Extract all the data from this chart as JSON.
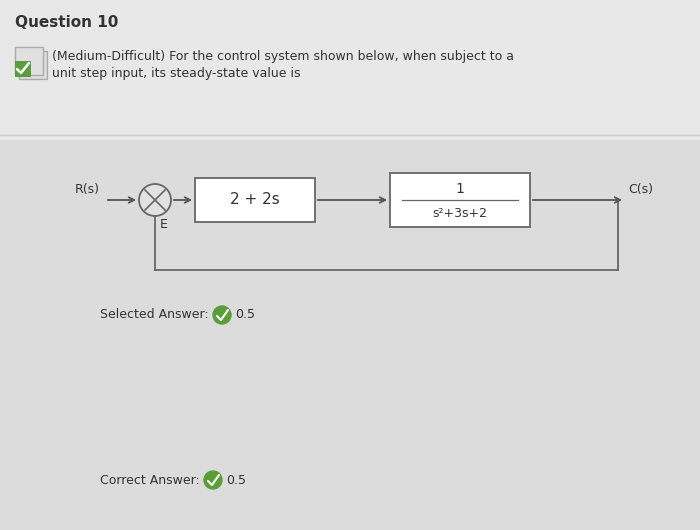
{
  "title": "Question 10",
  "subtitle_line1": "(Medium-Difficult) For the control system shown below, when subject to a",
  "subtitle_line2": "unit step input, its steady-state value is",
  "bg_color_top": "#e8e8e8",
  "bg_color_bottom": "#e8e8e8",
  "bg_color": "#e2e2e2",
  "box1_label": "2 + 2s",
  "box2_numerator": "1",
  "box2_denominator": "s²+3s+2",
  "r_label": "R(s)",
  "e_label": "E",
  "c_label": "C(s)",
  "selected_answer_label": "Selected Answer:",
  "selected_answer_value": "0.5",
  "correct_answer_label": "Correct Answer:",
  "correct_answer_value": "0.5",
  "check_color": "#5a9e3a",
  "text_color": "#333333",
  "box_edge_color": "#666666",
  "arrow_color": "#555555",
  "line_color": "#666666",
  "title_fontsize": 11,
  "subtitle_fontsize": 9,
  "diagram_fontsize": 9,
  "answer_fontsize": 9
}
